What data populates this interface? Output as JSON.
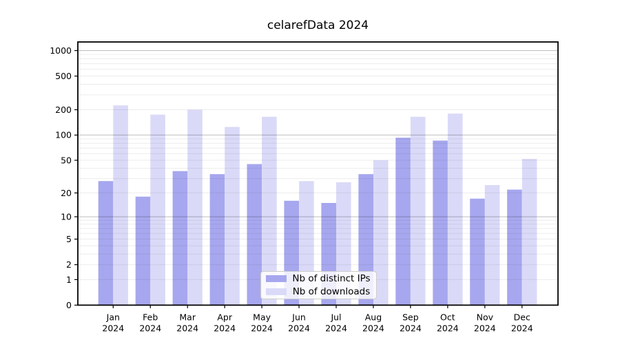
{
  "chart_data": {
    "type": "bar",
    "title": "celarefData 2024",
    "year_label": "2024",
    "categories": [
      "Jan",
      "Feb",
      "Mar",
      "Apr",
      "May",
      "Jun",
      "Jul",
      "Aug",
      "Sep",
      "Oct",
      "Nov",
      "Dec"
    ],
    "series": [
      {
        "name": "Nb of distinct IPs",
        "color": "#a7a7ef",
        "values": [
          28,
          18,
          37,
          34,
          45,
          16,
          15,
          34,
          93,
          86,
          17,
          22
        ]
      },
      {
        "name": "Nb of downloads",
        "color": "#dadaf8",
        "values": [
          225,
          175,
          200,
          125,
          165,
          28,
          27,
          50,
          165,
          180,
          25,
          52
        ]
      }
    ],
    "yticks": [
      0,
      1,
      2,
      5,
      10,
      20,
      50,
      100,
      200,
      500,
      1000
    ],
    "xlabel": "",
    "ylabel": "",
    "scale": "log1p",
    "ylim": [
      0,
      1270
    ],
    "grid": "horizontal",
    "legend_position": "lower center",
    "background_color": "#ffffff",
    "axis_color": "#000000"
  }
}
